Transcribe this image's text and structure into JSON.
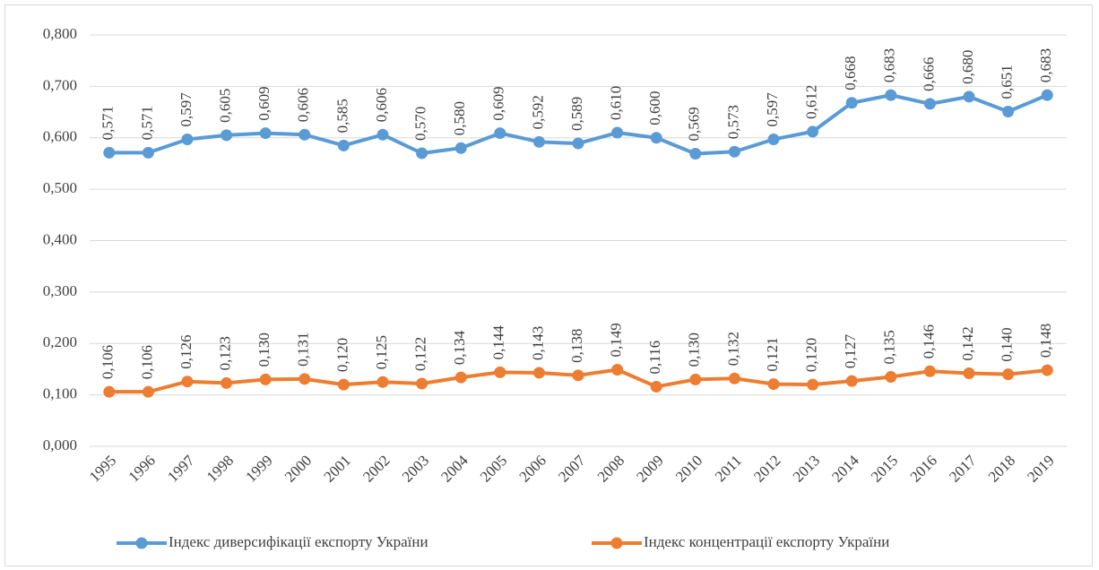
{
  "chart_data": {
    "type": "line",
    "categories": [
      "1995",
      "1996",
      "1997",
      "1998",
      "1999",
      "2000",
      "2001",
      "2002",
      "2003",
      "2004",
      "2005",
      "2006",
      "2007",
      "2008",
      "2009",
      "2010",
      "2011",
      "2012",
      "2013",
      "2014",
      "2015",
      "2016",
      "2017",
      "2018",
      "2019"
    ],
    "series": [
      {
        "name": "Індекс диверсифікації експорту України",
        "color": "#5b9bd5",
        "values": [
          0.571,
          0.571,
          0.597,
          0.605,
          0.609,
          0.606,
          0.585,
          0.606,
          0.57,
          0.58,
          0.609,
          0.592,
          0.589,
          0.61,
          0.6,
          0.569,
          0.573,
          0.597,
          0.612,
          0.668,
          0.683,
          0.666,
          0.68,
          0.651,
          0.683
        ],
        "value_labels": [
          "0,571",
          "0,571",
          "0,597",
          "0,605",
          "0,609",
          "0,606",
          "0,585",
          "0,606",
          "0,570",
          "0,580",
          "0,609",
          "0,592",
          "0,589",
          "0,610",
          "0,600",
          "0,569",
          "0,573",
          "0,597",
          "0,612",
          "0,668",
          "0,683",
          "0,666",
          "0,680",
          "0,651",
          "0,683"
        ]
      },
      {
        "name": "Індекс концентрації експорту України",
        "color": "#ed7d31",
        "values": [
          0.106,
          0.106,
          0.126,
          0.123,
          0.13,
          0.131,
          0.12,
          0.125,
          0.122,
          0.134,
          0.144,
          0.143,
          0.138,
          0.149,
          0.116,
          0.13,
          0.132,
          0.121,
          0.12,
          0.127,
          0.135,
          0.146,
          0.142,
          0.14,
          0.148
        ],
        "value_labels": [
          "0,106",
          "0,106",
          "0,126",
          "0,123",
          "0,130",
          "0,131",
          "0,120",
          "0,125",
          "0,122",
          "0,134",
          "0,144",
          "0,143",
          "0,138",
          "0,149",
          "0,116",
          "0,130",
          "0,132",
          "0,121",
          "0,120",
          "0,127",
          "0,135",
          "0,146",
          "0,142",
          "0,140",
          "0,148"
        ]
      }
    ],
    "ylim": [
      0,
      0.8
    ],
    "yticks": [
      {
        "value": 0,
        "label": "0,000"
      },
      {
        "value": 0.1,
        "label": "0,100"
      },
      {
        "value": 0.2,
        "label": "0,200"
      },
      {
        "value": 0.3,
        "label": "0,300"
      },
      {
        "value": 0.4,
        "label": "0,400"
      },
      {
        "value": 0.5,
        "label": "0,500"
      },
      {
        "value": 0.6,
        "label": "0,600"
      },
      {
        "value": 0.7,
        "label": "0,700"
      },
      {
        "value": 0.8,
        "label": "0,800"
      }
    ],
    "grid": true,
    "legend": "bottom"
  }
}
